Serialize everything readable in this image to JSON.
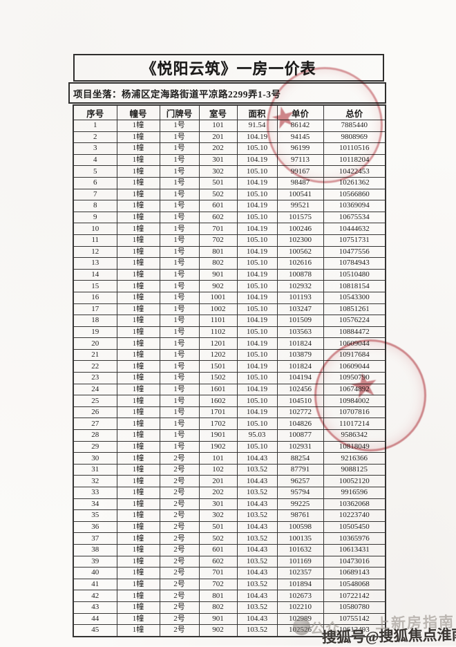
{
  "doc": {
    "title": "《悦阳云筑》一房一价表",
    "location_label": "项目坐落：",
    "location_value": "杨浦区定海路街道平凉路2299弄1-3号"
  },
  "table": {
    "columns": [
      "序号",
      "幢号",
      "门牌号",
      "室号",
      "面积",
      "单价",
      "总价"
    ],
    "rows": [
      [
        "1",
        "1幢",
        "1号",
        "101",
        "91.54",
        "86142",
        "7885440"
      ],
      [
        "2",
        "1幢",
        "1号",
        "201",
        "104.19",
        "94145",
        "9808969"
      ],
      [
        "3",
        "1幢",
        "1号",
        "202",
        "105.10",
        "96199",
        "10110516"
      ],
      [
        "4",
        "1幢",
        "1号",
        "301",
        "104.19",
        "97113",
        "10118204"
      ],
      [
        "5",
        "1幢",
        "1号",
        "302",
        "105.10",
        "99167",
        "10422453"
      ],
      [
        "6",
        "1幢",
        "1号",
        "501",
        "104.19",
        "98487",
        "10261362"
      ],
      [
        "7",
        "1幢",
        "1号",
        "502",
        "105.10",
        "100541",
        "10566860"
      ],
      [
        "8",
        "1幢",
        "1号",
        "601",
        "104.19",
        "99521",
        "10369094"
      ],
      [
        "9",
        "1幢",
        "1号",
        "602",
        "105.10",
        "101575",
        "10675534"
      ],
      [
        "10",
        "1幢",
        "1号",
        "701",
        "104.19",
        "100246",
        "10444632"
      ],
      [
        "11",
        "1幢",
        "1号",
        "702",
        "105.10",
        "102300",
        "10751731"
      ],
      [
        "12",
        "1幢",
        "1号",
        "801",
        "104.19",
        "100562",
        "10477556"
      ],
      [
        "13",
        "1幢",
        "1号",
        "802",
        "105.10",
        "102616",
        "10784943"
      ],
      [
        "14",
        "1幢",
        "1号",
        "901",
        "104.19",
        "100878",
        "10510480"
      ],
      [
        "15",
        "1幢",
        "1号",
        "902",
        "105.10",
        "102932",
        "10818154"
      ],
      [
        "16",
        "1幢",
        "1号",
        "1001",
        "104.19",
        "101193",
        "10543300"
      ],
      [
        "17",
        "1幢",
        "1号",
        "1002",
        "105.10",
        "103247",
        "10851261"
      ],
      [
        "18",
        "1幢",
        "1号",
        "1101",
        "104.19",
        "101509",
        "10576224"
      ],
      [
        "19",
        "1幢",
        "1号",
        "1102",
        "105.10",
        "103563",
        "10884472"
      ],
      [
        "20",
        "1幢",
        "1号",
        "1201",
        "104.19",
        "101824",
        "10609044"
      ],
      [
        "21",
        "1幢",
        "1号",
        "1202",
        "105.10",
        "103879",
        "10917684"
      ],
      [
        "22",
        "1幢",
        "1号",
        "1501",
        "104.19",
        "101824",
        "10609044"
      ],
      [
        "23",
        "1幢",
        "1号",
        "1502",
        "105.10",
        "104194",
        "10950790"
      ],
      [
        "24",
        "1幢",
        "1号",
        "1601",
        "104.19",
        "102456",
        "10674892"
      ],
      [
        "25",
        "1幢",
        "1号",
        "1602",
        "105.10",
        "104510",
        "10984002"
      ],
      [
        "26",
        "1幢",
        "1号",
        "1701",
        "104.19",
        "102772",
        "10707816"
      ],
      [
        "27",
        "1幢",
        "1号",
        "1702",
        "105.10",
        "104826",
        "11017214"
      ],
      [
        "28",
        "1幢",
        "1号",
        "1901",
        "95.03",
        "100877",
        "9586342"
      ],
      [
        "29",
        "1幢",
        "1号",
        "1902",
        "105.10",
        "102931",
        "10818049"
      ],
      [
        "30",
        "1幢",
        "2号",
        "101",
        "104.43",
        "88254",
        "9216366"
      ],
      [
        "31",
        "1幢",
        "2号",
        "102",
        "103.52",
        "87791",
        "9088125"
      ],
      [
        "32",
        "1幢",
        "2号",
        "201",
        "104.43",
        "96257",
        "10052120"
      ],
      [
        "33",
        "1幢",
        "2号",
        "202",
        "103.52",
        "95794",
        "9916596"
      ],
      [
        "34",
        "1幢",
        "2号",
        "301",
        "104.43",
        "99225",
        "10362068"
      ],
      [
        "35",
        "1幢",
        "2号",
        "302",
        "103.52",
        "98761",
        "10223740"
      ],
      [
        "36",
        "1幢",
        "2号",
        "501",
        "104.43",
        "100598",
        "10505450"
      ],
      [
        "37",
        "1幢",
        "2号",
        "502",
        "103.52",
        "100135",
        "10365976"
      ],
      [
        "38",
        "1幢",
        "2号",
        "601",
        "104.43",
        "101632",
        "10613431"
      ],
      [
        "39",
        "1幢",
        "2号",
        "602",
        "103.52",
        "101169",
        "10473016"
      ],
      [
        "40",
        "1幢",
        "2号",
        "701",
        "104.43",
        "102357",
        "10689143"
      ],
      [
        "41",
        "1幢",
        "2号",
        "702",
        "103.52",
        "101894",
        "10548068"
      ],
      [
        "42",
        "1幢",
        "2号",
        "801",
        "104.43",
        "102673",
        "10722142"
      ],
      [
        "43",
        "1幢",
        "2号",
        "802",
        "103.52",
        "102210",
        "10580780"
      ],
      [
        "44",
        "1幢",
        "2号",
        "901",
        "104.43",
        "102989",
        "10755142"
      ],
      [
        "45",
        "1幢",
        "2号",
        "902",
        "103.52",
        "102526",
        "10613493"
      ]
    ]
  },
  "stamps": {
    "seal_color": "#b73e46",
    "star_icon": "★"
  },
  "watermarks": {
    "faint_left": "公众",
    "faint_right": "上新房指南",
    "bold_text": "搜狐号@搜狐焦点淮南站"
  }
}
